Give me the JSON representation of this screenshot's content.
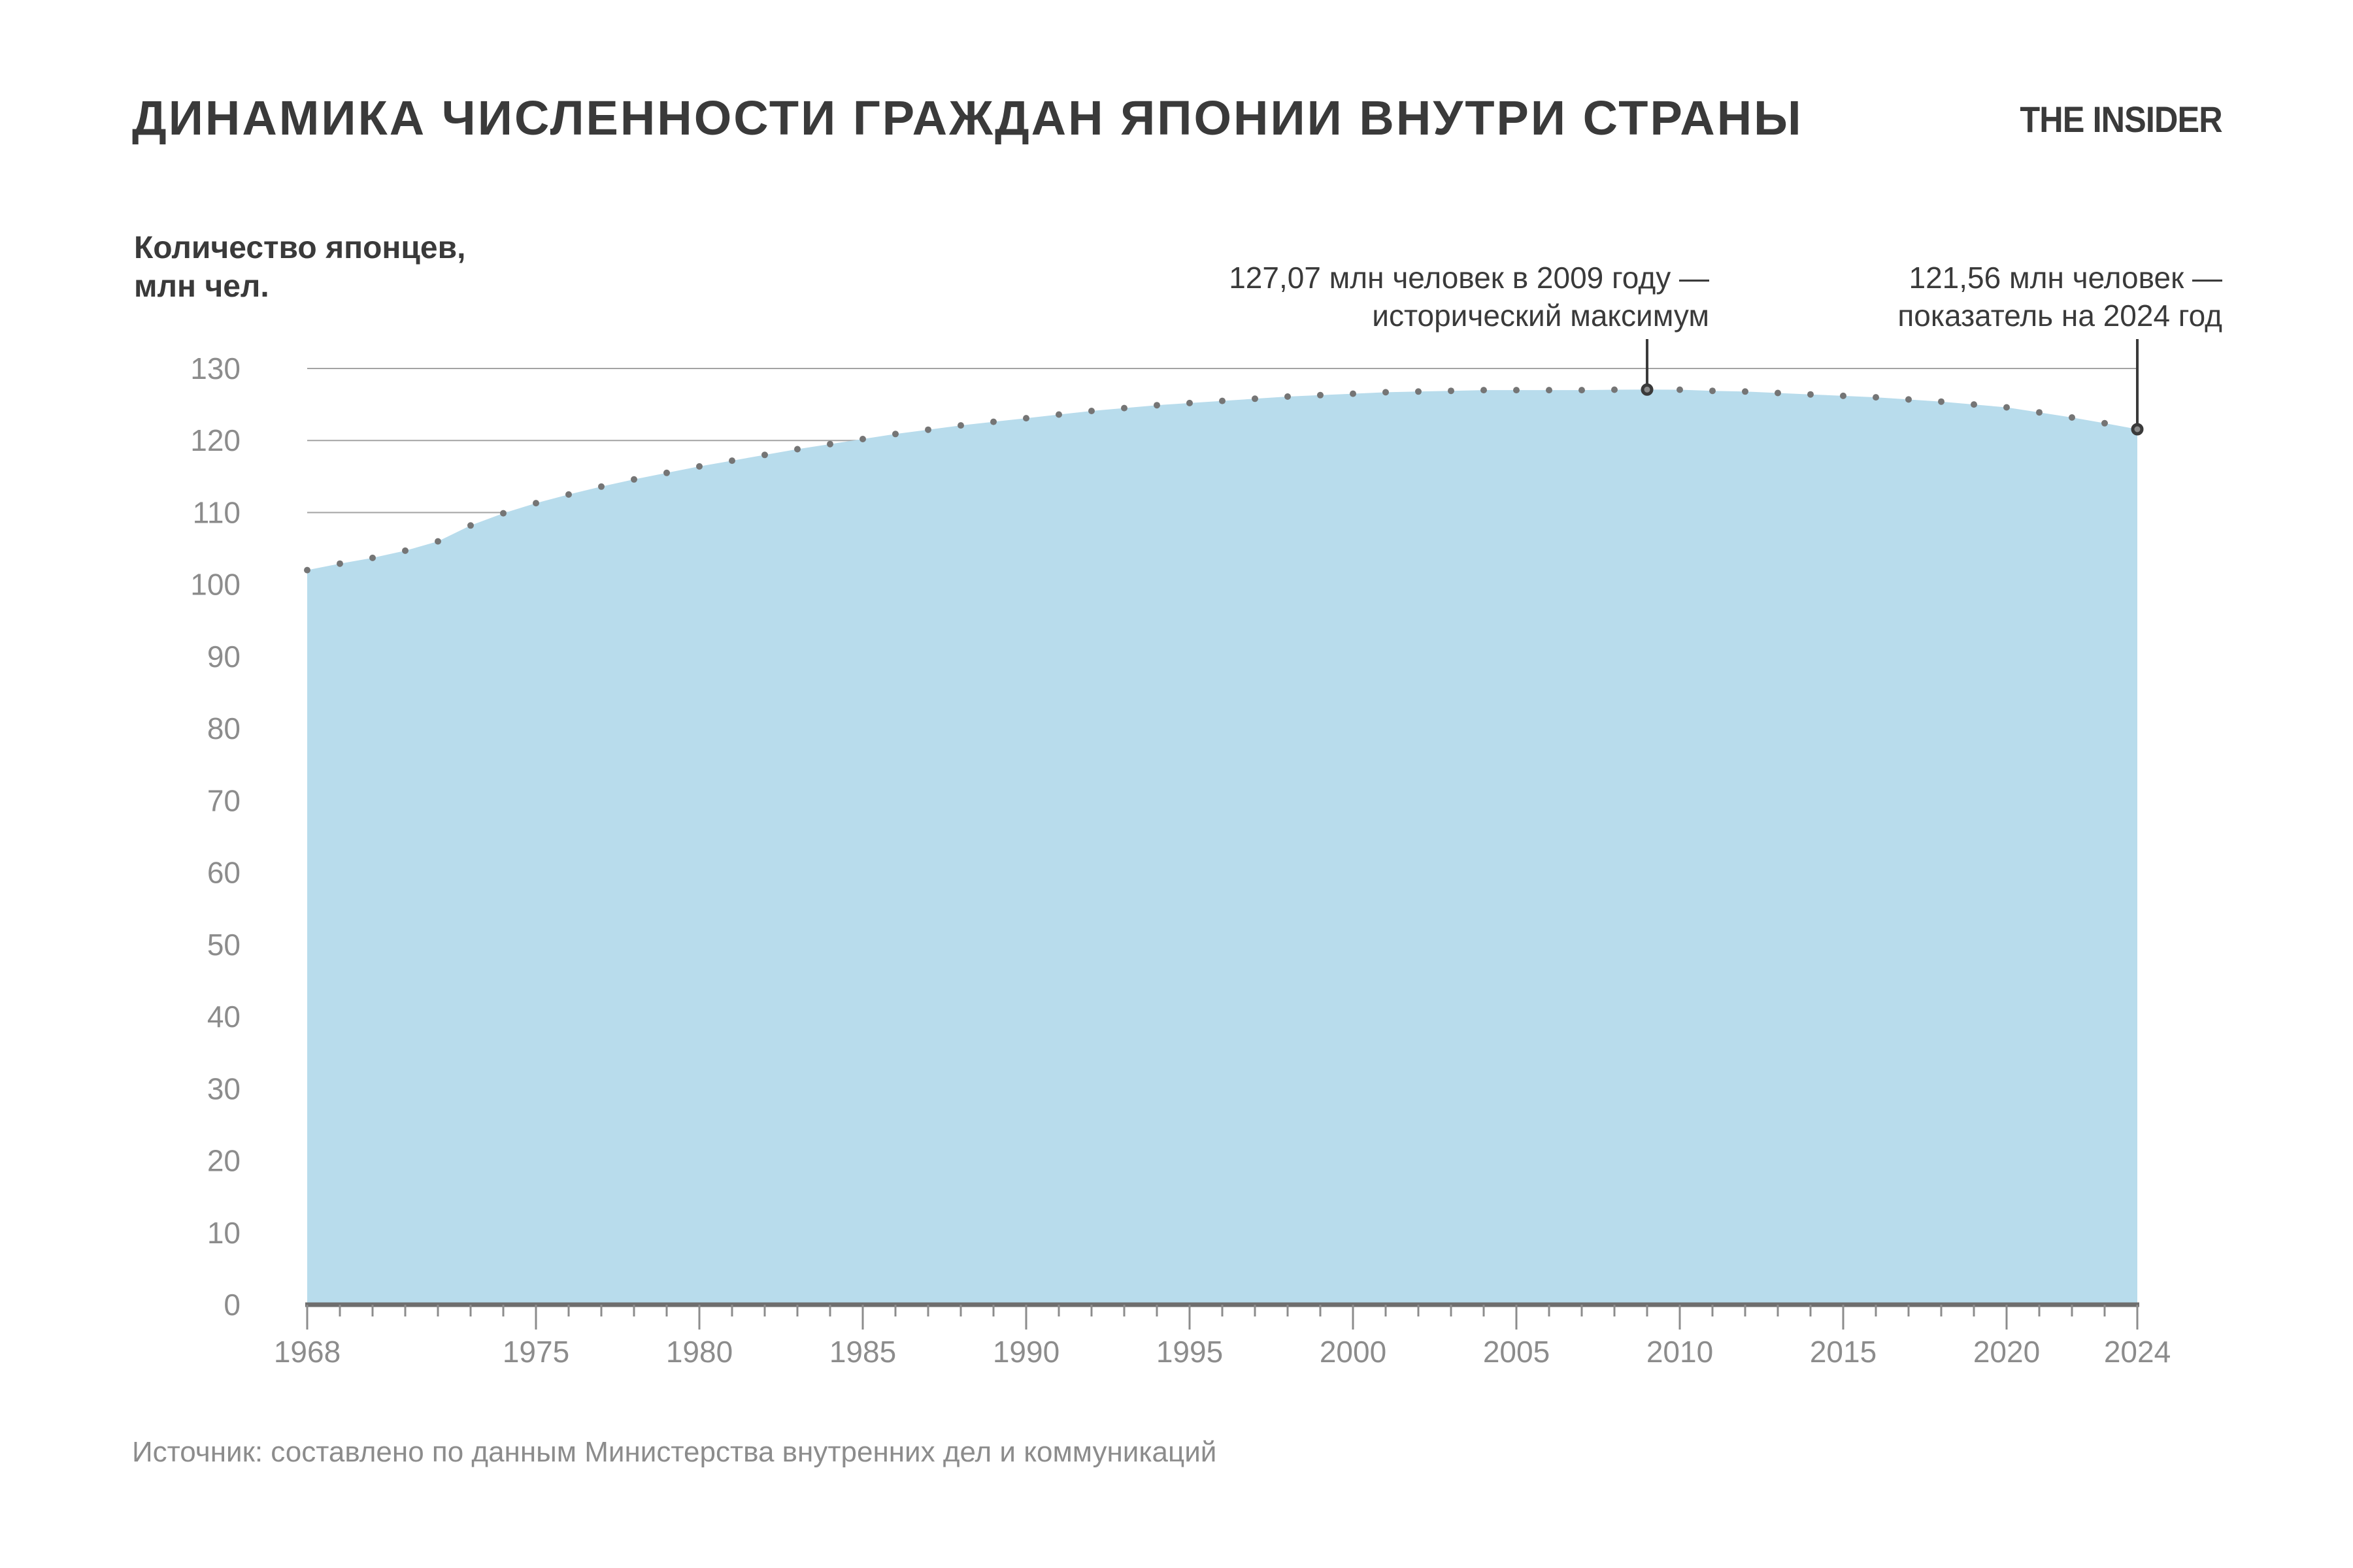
{
  "header": {
    "title": "ДИНАМИКА ЧИСЛЕННОСТИ ГРАЖДАН ЯПОНИИ ВНУТРИ СТРАНЫ",
    "logo": "THE INSIDER"
  },
  "y_axis": {
    "label_line1": "Количество японцев,",
    "label_line2": "млн чел."
  },
  "annotations": {
    "peak": {
      "line1": "127,07 млн человек в 2009 году —",
      "line2": "исторический максимум",
      "year": 2009,
      "value": 127.07
    },
    "latest": {
      "line1": "121,56 млн человек —",
      "line2": "показатель на 2024 год",
      "year": 2024,
      "value": 121.56
    }
  },
  "source": "Источник: составлено по данным Министерства внутренних дел и коммуникаций",
  "chart_data": {
    "type": "area",
    "title": "ДИНАМИКА ЧИСЛЕННОСТИ ГРАЖДАН ЯПОНИИ ВНУТРИ СТРАНЫ",
    "xlabel": "",
    "ylabel": "Количество японцев, млн чел.",
    "ylim": [
      0,
      130
    ],
    "yticks": [
      0,
      10,
      20,
      30,
      40,
      50,
      60,
      70,
      80,
      90,
      100,
      110,
      120,
      130
    ],
    "xticks": [
      1968,
      1975,
      1980,
      1985,
      1990,
      1995,
      2000,
      2005,
      2010,
      2015,
      2020,
      2024
    ],
    "grid": "horizontal",
    "legend": "none",
    "x": [
      1968,
      1969,
      1970,
      1971,
      1972,
      1973,
      1974,
      1975,
      1976,
      1977,
      1978,
      1979,
      1980,
      1981,
      1982,
      1983,
      1984,
      1985,
      1986,
      1987,
      1988,
      1989,
      1990,
      1991,
      1992,
      1993,
      1994,
      1995,
      1996,
      1997,
      1998,
      1999,
      2000,
      2001,
      2002,
      2003,
      2004,
      2005,
      2006,
      2007,
      2008,
      2009,
      2010,
      2011,
      2012,
      2013,
      2014,
      2015,
      2016,
      2017,
      2018,
      2019,
      2020,
      2021,
      2022,
      2023,
      2024
    ],
    "series": [
      {
        "name": "Количество японцев, млн чел.",
        "values": [
          102.0,
          102.9,
          103.7,
          104.7,
          106.0,
          108.2,
          109.9,
          111.3,
          112.5,
          113.6,
          114.6,
          115.5,
          116.4,
          117.2,
          118.0,
          118.8,
          119.5,
          120.2,
          120.9,
          121.5,
          122.1,
          122.6,
          123.1,
          123.6,
          124.1,
          124.5,
          124.9,
          125.2,
          125.5,
          125.8,
          126.1,
          126.3,
          126.5,
          126.7,
          126.8,
          126.9,
          127.0,
          127.0,
          127.0,
          127.0,
          127.05,
          127.07,
          127.05,
          126.9,
          126.8,
          126.6,
          126.4,
          126.2,
          126.0,
          125.7,
          125.4,
          125.0,
          124.6,
          123.9,
          123.2,
          122.4,
          121.56
        ]
      }
    ],
    "colors": {
      "area_fill": "#b8dcec",
      "dot": "#757575",
      "grid_line": "#a3a3a3",
      "axis_line": "#6e6e6e",
      "tick_label": "#8c8c8c",
      "text_dark": "#3a3a3a",
      "marker_ring": "#3a3a3a",
      "marker_fill": "#8a8a8a"
    }
  }
}
